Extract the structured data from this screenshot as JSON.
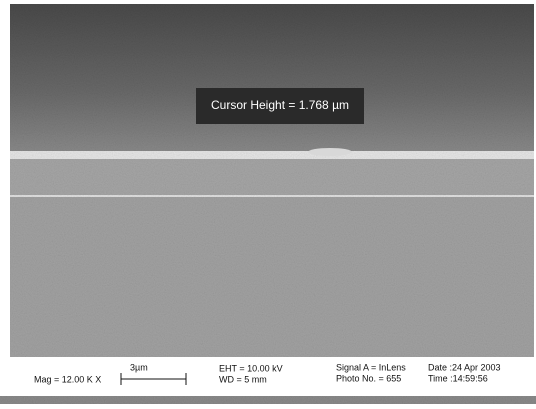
{
  "overlay": {
    "label": "Cursor Height = 1.768 µm"
  },
  "info": {
    "mag": "Mag =  12.00 K X",
    "scale_label": "3µm",
    "eht": "EHT = 10.00 kV",
    "wd": "WD =   5 mm",
    "signal": "Signal A = InLens",
    "photo": "Photo No. = 655",
    "date": "Date :24 Apr 2003",
    "time": "Time :14:59:56"
  }
}
